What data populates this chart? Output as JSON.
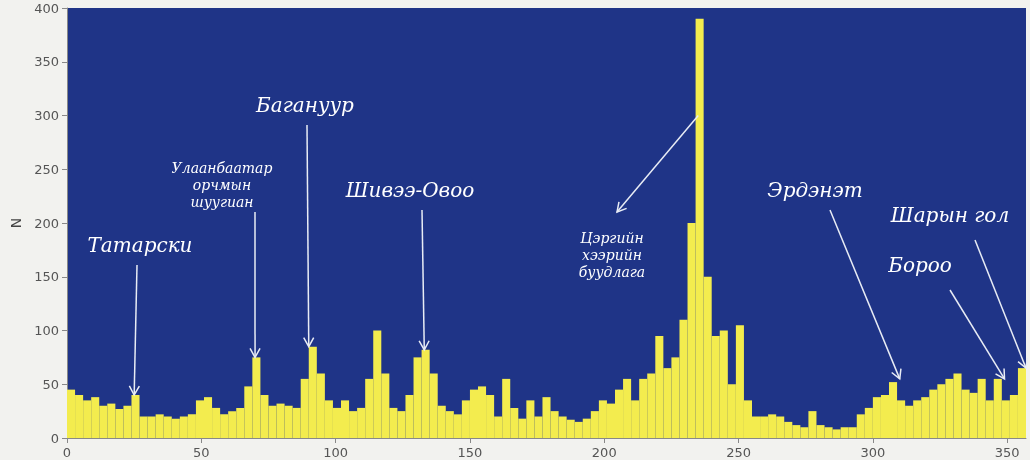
{
  "chart_data": {
    "type": "histogram",
    "ylabel": "N",
    "bins": [
      0,
      3,
      6,
      9,
      12,
      15,
      18,
      21,
      24,
      27,
      30,
      33,
      36,
      39,
      42,
      45,
      48,
      51,
      54,
      57,
      60,
      63,
      66,
      69,
      72,
      75,
      78,
      81,
      84,
      87,
      90,
      93,
      96,
      99,
      102,
      105,
      108,
      111,
      114,
      117,
      120,
      123,
      126,
      129,
      132,
      135,
      138,
      141,
      144,
      147,
      150,
      153,
      156,
      159,
      162,
      165,
      168,
      171,
      174,
      177,
      180,
      183,
      186,
      189,
      192,
      195,
      198,
      201,
      204,
      207,
      210,
      213,
      216,
      219,
      222,
      225,
      228,
      231,
      234,
      237,
      240,
      243,
      246,
      249,
      252,
      255,
      258,
      261,
      264,
      267,
      270,
      273,
      276,
      279,
      282,
      285,
      288,
      291,
      294,
      297,
      300,
      303,
      306,
      309,
      312,
      315,
      318,
      321,
      324,
      327,
      330,
      333,
      336,
      339,
      342,
      345,
      348,
      351,
      354,
      357
    ],
    "values": [
      45,
      40,
      35,
      38,
      30,
      32,
      27,
      30,
      40,
      20,
      20,
      22,
      20,
      18,
      20,
      22,
      35,
      38,
      28,
      22,
      25,
      28,
      48,
      75,
      40,
      30,
      32,
      30,
      28,
      55,
      85,
      60,
      35,
      28,
      35,
      25,
      28,
      55,
      100,
      60,
      28,
      25,
      40,
      75,
      82,
      60,
      30,
      25,
      22,
      35,
      45,
      48,
      40,
      20,
      55,
      28,
      18,
      35,
      20,
      38,
      25,
      20,
      17,
      15,
      18,
      25,
      35,
      32,
      45,
      55,
      35,
      55,
      60,
      95,
      65,
      75,
      110,
      200,
      390,
      150,
      95,
      100,
      50,
      105,
      35,
      20,
      20,
      22,
      20,
      15,
      12,
      10,
      25,
      12,
      10,
      8,
      10,
      10,
      22,
      28,
      38,
      40,
      52,
      35,
      30,
      35,
      38,
      45,
      50,
      55,
      60,
      45,
      42,
      55,
      35,
      55,
      35,
      40,
      65
    ],
    "color": "#f3ec4e",
    "xlim": [
      0,
      357
    ],
    "xticks": [
      0,
      50,
      100,
      150,
      200,
      250,
      300,
      350
    ],
    "ylim": [
      0,
      400
    ],
    "yticks": [
      0,
      50,
      100,
      150,
      200,
      250,
      300,
      350,
      400
    ],
    "grid": false,
    "annotations": [
      {
        "text": "Татарски",
        "x": 25,
        "y": 40
      },
      {
        "text": "Улаанбаатар\nорчмын\nшуугиан",
        "x": 70,
        "y": 75
      },
      {
        "text": "Багануур",
        "x": 90,
        "y": 85
      },
      {
        "text": "Шивээ-Овоо",
        "x": 133,
        "y": 82
      },
      {
        "text": "Цэргийн\nхээрийн\nбуудлага",
        "x": 235,
        "y": 300
      },
      {
        "text": "Эрдэнэт",
        "x": 310,
        "y": 55
      },
      {
        "text": "Бороо",
        "x": 349,
        "y": 55
      },
      {
        "text": "Шарын гол",
        "x": 357,
        "y": 65
      }
    ]
  }
}
